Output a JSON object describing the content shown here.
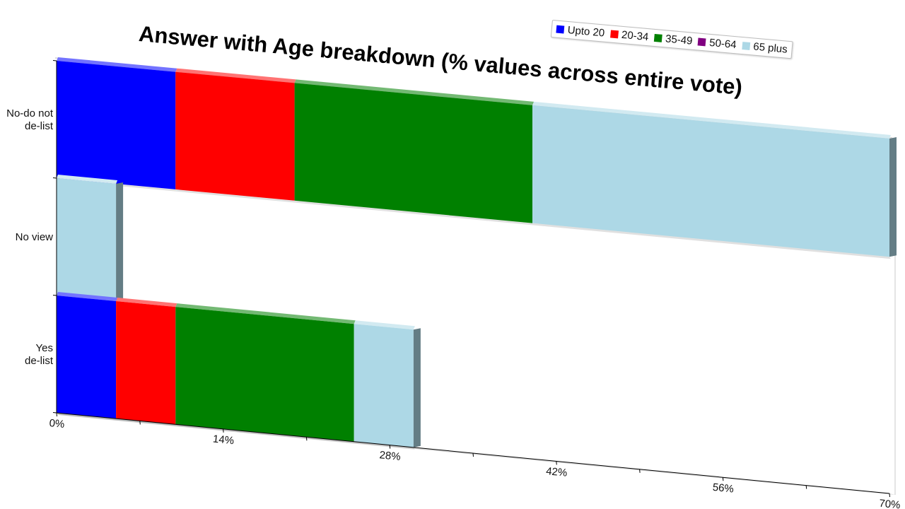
{
  "chart_data": {
    "type": "bar",
    "orientation": "horizontal",
    "stacked": true,
    "title": "Answer with Age breakdown (% values across entire vote)",
    "categories": [
      "No-do not\nde-list",
      "No view",
      "Yes\nde-list"
    ],
    "series": [
      {
        "name": "Upto 20",
        "color": "#0000ff",
        "values": [
          10,
          0,
          5
        ]
      },
      {
        "name": "20-34",
        "color": "#ff0000",
        "values": [
          10,
          0,
          5
        ]
      },
      {
        "name": "35-49",
        "color": "#008000",
        "values": [
          20,
          0,
          15
        ]
      },
      {
        "name": "50-64",
        "color": "#800080",
        "values": [
          0,
          0,
          0
        ]
      },
      {
        "name": "65 plus",
        "color": "#add8e6",
        "values": [
          30,
          5,
          5
        ]
      }
    ],
    "x_ticks": [
      "0%",
      "14%",
      "28%",
      "42%",
      "56%",
      "70%"
    ],
    "xlim": [
      0,
      70
    ],
    "legend_position": "top-right",
    "grid": false
  }
}
